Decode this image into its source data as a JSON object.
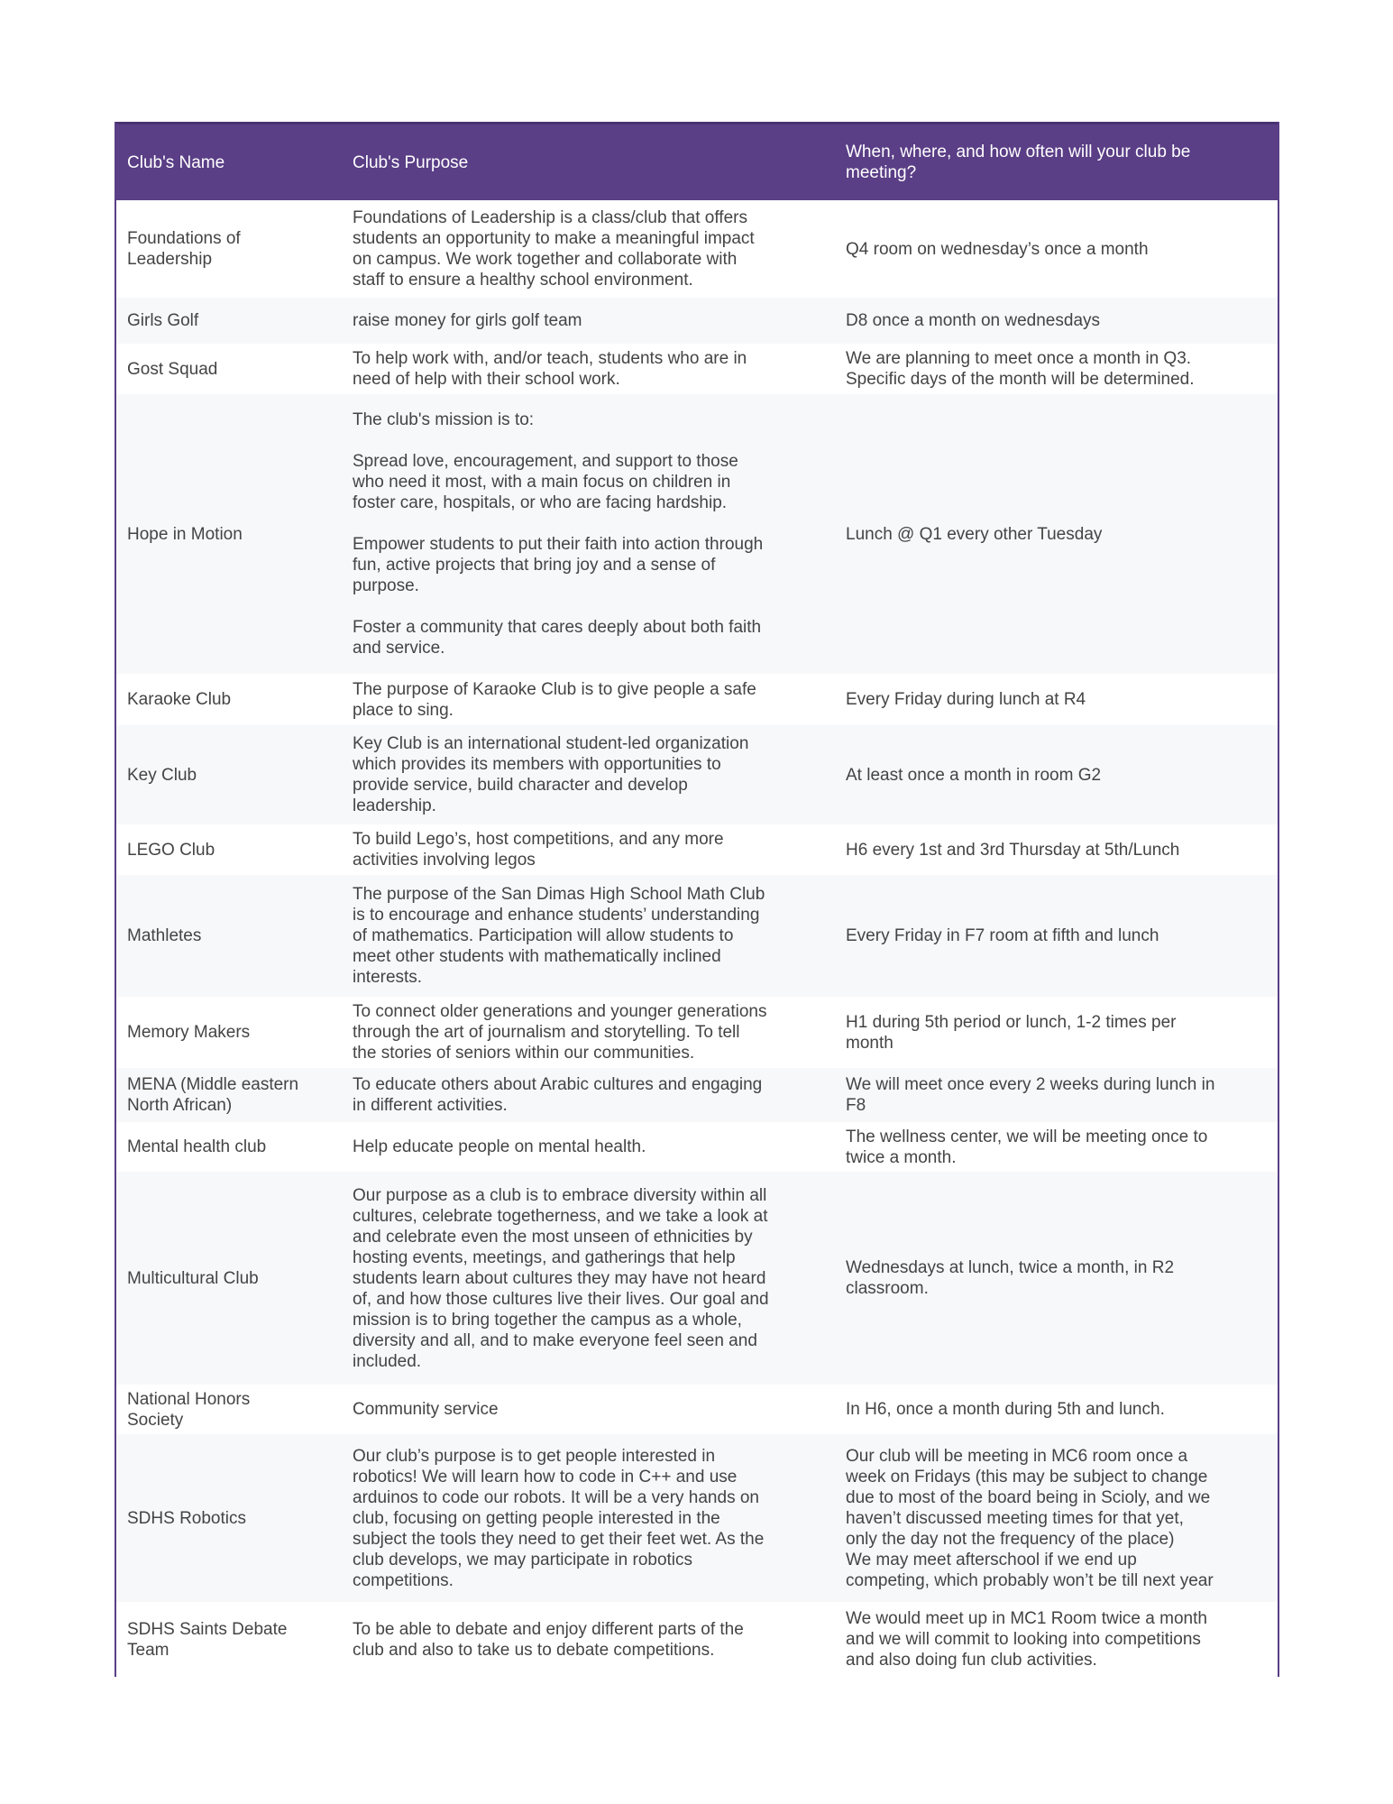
{
  "header": {
    "name": "Club's Name",
    "purpose": "Club's Purpose",
    "meeting": "When, where, and how often will your club be\nmeeting?"
  },
  "rows": [
    {
      "name": "Foundations of\nLeadership",
      "purpose": "Foundations of Leadership is a class/club that offers\nstudents an opportunity to make a meaningful impact\non campus. We work together and collaborate with\nstaff to ensure a healthy school environment.",
      "meeting": "Q4 room on wednesday’s once a month"
    },
    {
      "name": "Girls Golf",
      "purpose": "raise money for girls golf team",
      "meeting": "D8 once a month on wednesdays"
    },
    {
      "name": "Gost Squad",
      "purpose": "To help work with, and/or teach, students who are in\nneed of help with their school work.",
      "meeting": "We are planning to meet once a month in Q3.\nSpecific days of the month will be determined."
    },
    {
      "name": "Hope in Motion",
      "purpose": "The club's mission is to:\n\nSpread love, encouragement, and support to those\nwho need it most, with a main focus on children in\nfoster care, hospitals, or who are facing hardship.\n\nEmpower students to put their faith into action through\nfun, active projects that bring joy and a sense of\npurpose.\n\nFoster a community that cares deeply about both faith\nand service.",
      "meeting": "Lunch @ Q1 every other Tuesday"
    },
    {
      "name": "Karaoke Club",
      "purpose": "The purpose of Karaoke Club is to give people a safe\nplace to sing.",
      "meeting": "Every Friday during lunch at R4"
    },
    {
      "name": "Key Club",
      "purpose": "Key Club is an international student-led organization\nwhich provides its members with opportunities to\nprovide service, build character and develop\nleadership.",
      "meeting": "At least once a month in room G2"
    },
    {
      "name": "LEGO Club",
      "purpose": "To build Lego’s, host competitions, and any more\nactivities involving legos",
      "meeting": "H6 every 1st and 3rd Thursday at 5th/Lunch"
    },
    {
      "name": "Mathletes",
      "purpose": "The purpose of the San Dimas High School Math Club\nis to encourage and enhance students’ understanding\nof mathematics. Participation will allow students to\nmeet other students with mathematically inclined\ninterests.",
      "meeting": "Every Friday in F7 room at fifth and lunch"
    },
    {
      "name": "Memory Makers",
      "purpose": "To connect older generations and younger generations\nthrough the art of journalism and storytelling. To tell\nthe stories of seniors within our communities.",
      "meeting": "H1 during 5th period or lunch, 1-2 times per\nmonth"
    },
    {
      "name": "MENA (Middle eastern\nNorth African)",
      "purpose": "To educate others about Arabic cultures and engaging\nin different activities.",
      "meeting": "We will meet once every 2 weeks during lunch in\nF8"
    },
    {
      "name": "Mental health club",
      "purpose": "Help educate people on mental health.",
      "meeting": "The wellness center, we will be meeting once to\ntwice a month."
    },
    {
      "name": "Multicultural Club",
      "purpose": "Our purpose as a club is to embrace diversity within all\ncultures, celebrate togetherness, and we take a look at\nand celebrate even the most unseen of ethnicities by\nhosting events, meetings, and gatherings that help\nstudents learn about cultures they may have not heard\nof, and how those cultures live their lives. Our goal and\nmission is to bring together the campus as a whole,\ndiversity and all, and to make everyone feel seen and\nincluded.",
      "meeting": "Wednesdays at lunch, twice a month, in R2\nclassroom."
    },
    {
      "name": "National Honors\nSociety",
      "purpose": "Community service",
      "meeting": "In H6, once a month during 5th and lunch."
    },
    {
      "name": "SDHS Robotics",
      "purpose": "Our club’s purpose is to get people interested in\nrobotics! We will learn how to code in C++ and use\narduinos to code our robots. It will be a very hands on\nclub, focusing on getting people interested in the\nsubject the tools they need to get their feet wet. As the\nclub develops, we may participate in robotics\ncompetitions.",
      "meeting": "Our club will be meeting in MC6 room once a\nweek on Fridays (this may be subject to change\ndue to most of the board being in Scioly, and we\nhaven’t discussed meeting times for that yet,\nonly the day not the frequency of the place)\nWe may meet afterschool if we end up\ncompeting, which probably won’t be till next year"
    },
    {
      "name": "SDHS Saints Debate\nTeam",
      "purpose": "To be able to debate and enjoy different parts of the\nclub and also to take us to debate competitions.",
      "meeting": "We would meet up in MC1 Room twice a month\nand we will commit to looking into competitions\nand also doing fun club activities."
    }
  ]
}
